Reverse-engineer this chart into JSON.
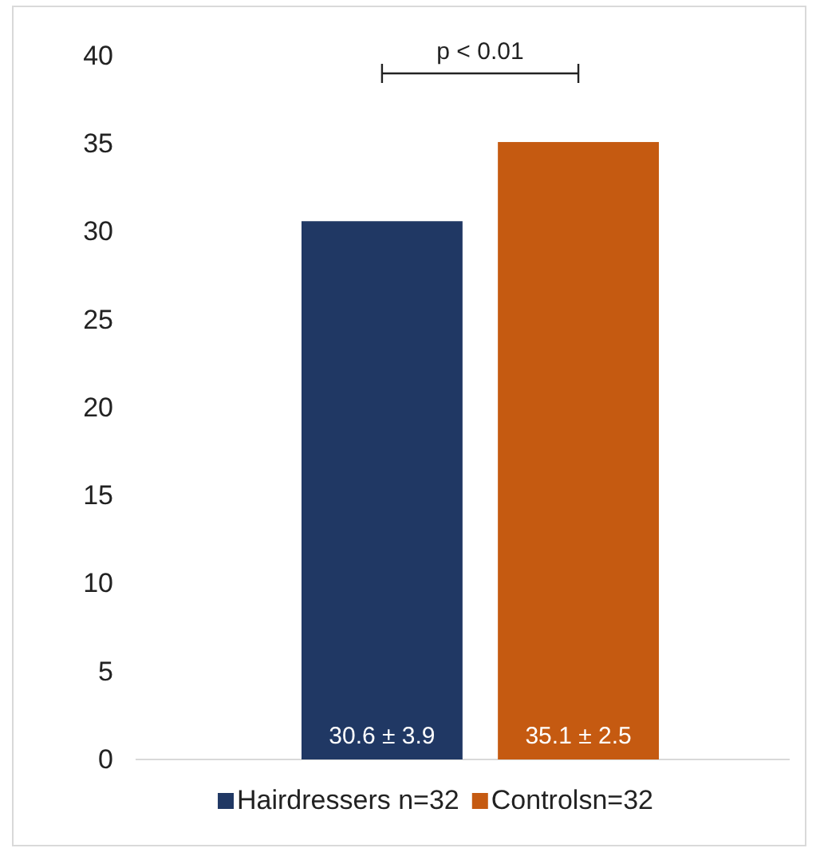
{
  "chart_data": {
    "type": "bar",
    "categories": [
      null,
      null
    ],
    "series": [
      {
        "name": "Hairdressers n=32",
        "color": "#203864",
        "values": [
          30.6,
          null
        ],
        "value_labels": [
          "30.6 ± 3.9",
          null
        ]
      },
      {
        "name": "Controlsn=32",
        "color": "#c55a11",
        "values": [
          null,
          35.1
        ],
        "value_labels": [
          null,
          "35.1 ± 2.5"
        ]
      }
    ],
    "ylim": [
      0,
      40
    ],
    "yticks": [
      0,
      5,
      10,
      15,
      20,
      25,
      30,
      35,
      40
    ],
    "grid": false,
    "legend": "bottom",
    "annotations": [
      "p < 0.01"
    ]
  }
}
